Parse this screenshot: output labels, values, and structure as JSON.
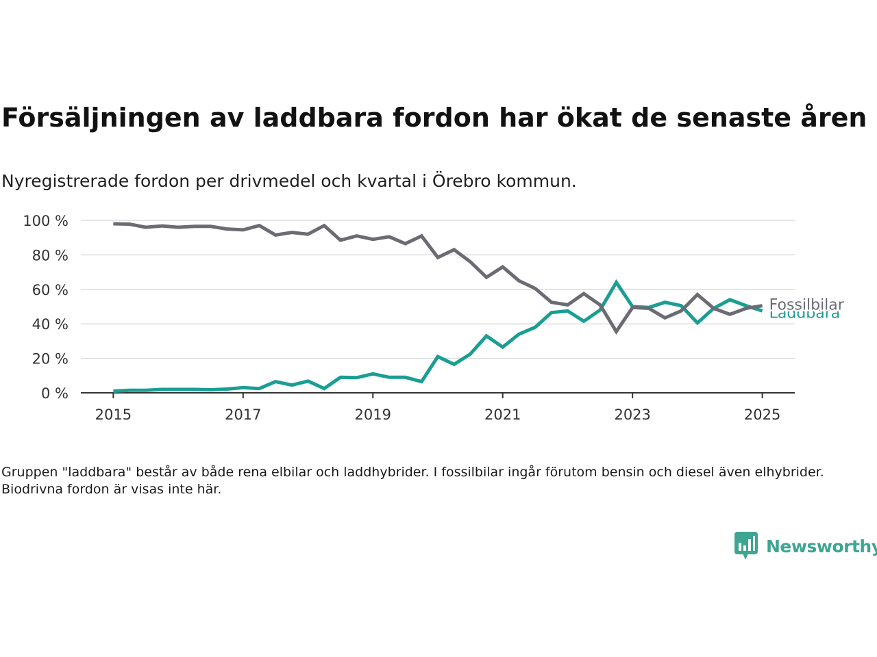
{
  "header": {
    "title": "Försäljningen av laddbara fordon har ökat de senaste åren",
    "subtitle": "Nyregistrerade fordon per drivmedel och kvartal i Örebro kommun."
  },
  "footer": {
    "note": "Gruppen \"laddbara\" består av både rena elbilar och laddhybrider. I fossilbilar ingår förutom bensin och diesel även elhybrider. Biodrivna fordon är visas inte här.",
    "brand": "Newsworthy"
  },
  "colors": {
    "fossil": "#6b6b73",
    "laddbara": "#1a9e94",
    "brand": "#3fa593"
  },
  "chart_data": {
    "type": "line",
    "ylim": [
      0,
      100
    ],
    "y_ticks": [
      "0 %",
      "20 %",
      "40 %",
      "60 %",
      "80 %",
      "100 %"
    ],
    "y_tick_values": [
      0,
      20,
      40,
      60,
      80,
      100
    ],
    "x_ticks": [
      "2015",
      "2017",
      "2019",
      "2021",
      "2023",
      "2025"
    ],
    "x_tick_values": [
      2015,
      2017,
      2019,
      2021,
      2023,
      2025
    ],
    "xlim": [
      2014.5,
      2025.5
    ],
    "grid": true,
    "x": [
      2015.0,
      2015.25,
      2015.5,
      2015.75,
      2016.0,
      2016.25,
      2016.5,
      2016.75,
      2017.0,
      2017.25,
      2017.5,
      2017.75,
      2018.0,
      2018.25,
      2018.5,
      2018.75,
      2019.0,
      2019.25,
      2019.5,
      2019.75,
      2020.0,
      2020.25,
      2020.5,
      2020.75,
      2021.0,
      2021.25,
      2021.5,
      2021.75,
      2022.0,
      2022.25,
      2022.5,
      2022.75,
      2023.0,
      2023.25,
      2023.5,
      2023.75,
      2024.0,
      2024.25,
      2024.5,
      2024.75,
      2025.0
    ],
    "series": [
      {
        "name": "Fossilbilar",
        "color": "#6b6b73",
        "values": [
          98,
          97.8,
          96,
          96.8,
          96,
          96.5,
          96.5,
          95,
          94.5,
          97,
          91.5,
          93,
          92,
          97,
          88.5,
          91,
          89,
          90.5,
          86.5,
          91,
          78.5,
          83,
          76,
          67,
          73,
          65,
          60.5,
          52.5,
          51,
          57.5,
          51,
          35.5,
          49.5,
          49,
          43.5,
          47.5,
          57,
          49,
          45.5,
          49,
          50.5
        ]
      },
      {
        "name": "Laddbara",
        "color": "#1a9e94",
        "values": [
          1,
          1.5,
          1.5,
          2,
          2,
          2,
          1.8,
          2.2,
          3,
          2.5,
          6.5,
          4.5,
          6.8,
          2.5,
          9,
          8.8,
          11,
          9,
          9,
          6.5,
          21,
          16.5,
          22.5,
          33,
          26.5,
          34,
          38,
          46.5,
          47.5,
          41.5,
          48,
          64,
          50,
          49.5,
          52.5,
          50.5,
          40.5,
          49,
          54,
          50.5,
          47.5
        ]
      }
    ]
  }
}
